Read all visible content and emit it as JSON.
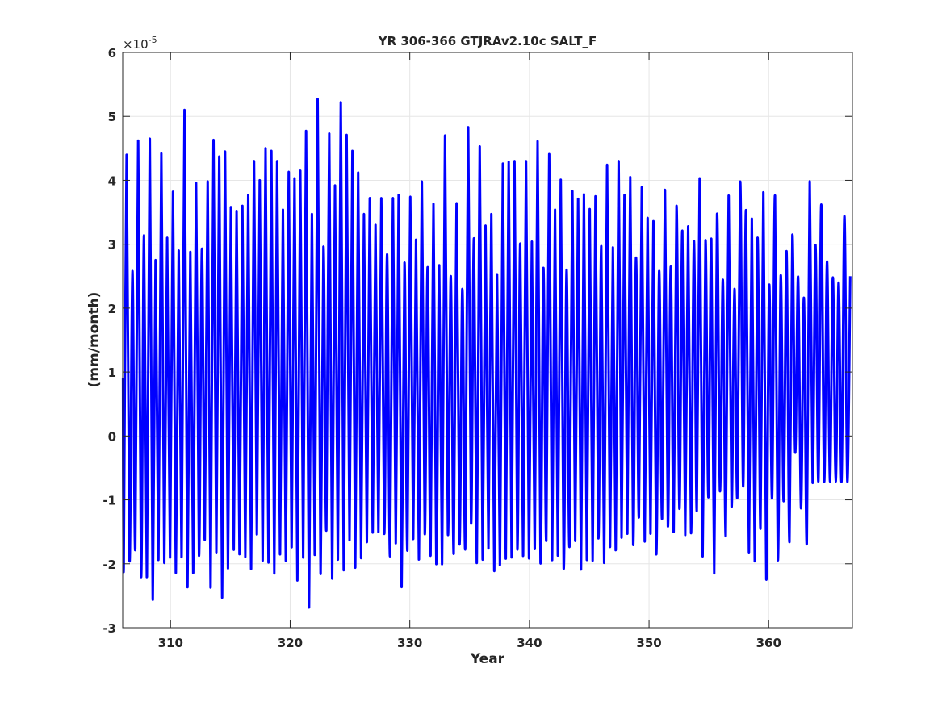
{
  "chart_data": {
    "type": "line",
    "title": "YR 306-366 GTJRAv2.10c SALT_F",
    "xlabel": "Year",
    "ylabel": "(mm/month)",
    "exponent_base": "×10",
    "exponent_power": "-5",
    "xlim": [
      306,
      367
    ],
    "ylim": [
      -3,
      6
    ],
    "x_ticks": [
      310,
      320,
      330,
      340,
      350,
      360
    ],
    "y_ticks": [
      -3,
      -2,
      -1,
      0,
      1,
      2,
      3,
      4,
      5,
      6
    ],
    "grid": true,
    "legend": "none",
    "series": [
      {
        "color": "#0000ff",
        "peaks": [
          4.4,
          2.58,
          4.62,
          3.14,
          4.65,
          2.75,
          4.42,
          3.1,
          3.82,
          2.9,
          5.1,
          2.88,
          3.96,
          2.93,
          3.98,
          4.63,
          4.37,
          4.45,
          3.58,
          3.52,
          3.6,
          3.77,
          4.3,
          4.0,
          4.5,
          4.46,
          4.3,
          3.54,
          4.13,
          4.03,
          4.15,
          4.77,
          3.47,
          5.27,
          2.96,
          4.73,
          3.92,
          5.22,
          4.71,
          4.46,
          4.12,
          3.47,
          3.72,
          3.3,
          3.72,
          2.84,
          3.72,
          3.77,
          2.71,
          3.74,
          3.07,
          3.98,
          2.64,
          3.63,
          2.67,
          4.7,
          2.5,
          3.64,
          2.3,
          4.83,
          3.09,
          4.53,
          3.29,
          3.47,
          2.53,
          4.26,
          4.29,
          4.3,
          3.01,
          4.3,
          3.04,
          4.61,
          2.63,
          4.41,
          3.54,
          4.01,
          2.6,
          3.83,
          3.71,
          3.78,
          3.55,
          3.75,
          2.97,
          4.24,
          2.95,
          4.3,
          3.77,
          4.05,
          2.79,
          3.89,
          3.41,
          3.36,
          2.58,
          3.85,
          2.65,
          3.6,
          3.21,
          3.28,
          3.05,
          4.03,
          3.06,
          3.08,
          3.47,
          2.44,
          3.76,
          2.3,
          3.98,
          3.53,
          3.4,
          3.1,
          3.81,
          2.36,
          3.76,
          2.51,
          2.89,
          3.14,
          2.49,
          2.16,
          3.98,
          2.99,
          3.62,
          2.73,
          2.48,
          2.4,
          3.44,
          2.5
        ],
        "troughs": [
          -2.06,
          -1.95,
          -1.77,
          -2.2,
          -2.2,
          -2.55,
          -1.93,
          -1.98,
          -1.9,
          -2.14,
          -1.88,
          -2.35,
          -2.14,
          -1.87,
          -1.62,
          -2.37,
          -1.82,
          -2.53,
          -2.07,
          -1.78,
          -1.85,
          -1.89,
          -2.08,
          -1.54,
          -1.95,
          -1.98,
          -2.15,
          -1.85,
          -1.95,
          -1.74,
          -2.26,
          -1.9,
          -2.68,
          -1.85,
          -2.14,
          -1.47,
          -2.23,
          -1.93,
          -2.1,
          -1.63,
          -2.06,
          -1.91,
          -1.66,
          -1.51,
          -1.5,
          -1.53,
          -1.88,
          -1.68,
          -2.36,
          -1.79,
          -1.61,
          -1.93,
          -1.53,
          -1.87,
          -2.0,
          -1.99,
          -1.53,
          -1.84,
          -1.69,
          -1.75,
          -1.36,
          -1.98,
          -1.93,
          -1.76,
          -2.11,
          -2.01,
          -1.92,
          -1.9,
          -1.77,
          -1.87,
          -1.91,
          -1.76,
          -1.98,
          -1.63,
          -1.94,
          -1.87,
          -2.07,
          -1.73,
          -1.64,
          -2.09,
          -1.94,
          -1.95,
          -1.6,
          -1.98,
          -1.73,
          -1.78,
          -1.59,
          -1.53,
          -1.7,
          -1.27,
          -1.65,
          -1.53,
          -1.85,
          -1.29,
          -1.41,
          -1.5,
          -1.14,
          -1.55,
          -1.52,
          -1.17,
          -1.88,
          -0.96,
          -2.15,
          -0.86,
          -1.56,
          -1.1,
          -0.96,
          -0.79,
          -1.82,
          -1.96,
          -1.45,
          -2.24,
          -0.97,
          -1.94,
          -1.02,
          -1.66,
          -0.26,
          -1.13,
          -1.68,
          -0.73,
          -0.71
        ]
      }
    ]
  }
}
